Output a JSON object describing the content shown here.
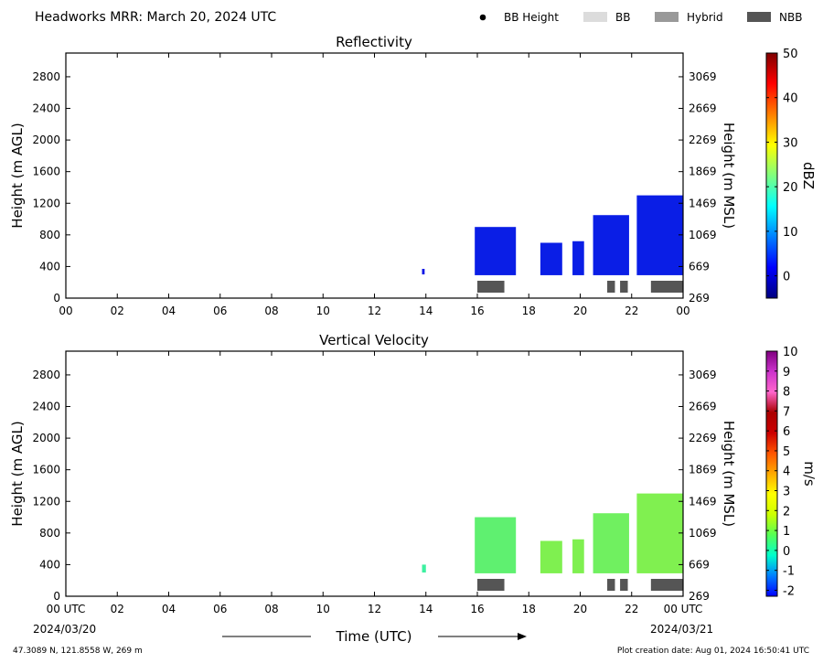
{
  "header": {
    "title": "Headworks MRR:  March 20, 2024 UTC",
    "legend": [
      {
        "label": "BB Height",
        "kind": "dot",
        "color": "#000000"
      },
      {
        "label": "BB",
        "kind": "swatch",
        "color": "#dcdcdc"
      },
      {
        "label": "Hybrid",
        "kind": "swatch",
        "color": "#999999"
      },
      {
        "label": "NBB",
        "kind": "swatch",
        "color": "#555555"
      }
    ]
  },
  "footer": {
    "location": "47.3089 N, 121.8558 W, 269 m",
    "creation": "Plot creation date: Aug 01, 2024 16:50:41 UTC",
    "xlabel": "Time (UTC)",
    "start_date": "2024/03/20",
    "end_date": "2024/03/21"
  },
  "chart_data": [
    {
      "type": "heatmap",
      "title": "Reflectivity",
      "ylabel": "Height (m AGL)",
      "y2label": "Height (m MSL)",
      "xlim": [
        0,
        24
      ],
      "ylim": [
        0,
        3100
      ],
      "x_ticks": [
        "00",
        "02",
        "04",
        "06",
        "08",
        "10",
        "12",
        "14",
        "16",
        "18",
        "20",
        "22",
        "00"
      ],
      "y_ticks": [
        0,
        400,
        800,
        1200,
        1600,
        2000,
        2400,
        2800
      ],
      "y2_ticks": [
        269,
        669,
        1069,
        1469,
        1869,
        2269,
        2669,
        3069
      ],
      "colorbar": {
        "label": "dBZ",
        "range": [
          -5,
          50
        ],
        "ticks": [
          0,
          10,
          20,
          30,
          40,
          50
        ],
        "colors": [
          "#00007f",
          "#0000ff",
          "#007fff",
          "#00ffff",
          "#7fff7f",
          "#ffff00",
          "#ff7f00",
          "#ff0000",
          "#7f0000"
        ]
      },
      "echo_segments": [
        {
          "start": 13.85,
          "end": 13.95,
          "top": 370,
          "bottom": 300,
          "color": "#0a14e6"
        },
        {
          "start": 15.9,
          "end": 17.5,
          "top": 900,
          "bottom": 290,
          "color": "#0a1ee6"
        },
        {
          "start": 18.45,
          "end": 19.3,
          "top": 700,
          "bottom": 290,
          "color": "#0a1ee6"
        },
        {
          "start": 19.7,
          "end": 20.15,
          "top": 720,
          "bottom": 290,
          "color": "#0a1ee6"
        },
        {
          "start": 20.5,
          "end": 21.9,
          "top": 1050,
          "bottom": 290,
          "color": "#0a1ee6"
        },
        {
          "start": 22.2,
          "end": 24.0,
          "top": 1300,
          "bottom": 290,
          "color": "#0a1ee6"
        }
      ],
      "nbb_segments": [
        {
          "start": 16.0,
          "end": 17.05
        },
        {
          "start": 21.05,
          "end": 21.35
        },
        {
          "start": 21.55,
          "end": 21.85
        },
        {
          "start": 22.75,
          "end": 24.0
        }
      ]
    },
    {
      "type": "heatmap",
      "title": "Vertical Velocity",
      "ylabel": "Height (m AGL)",
      "y2label": "Height (m MSL)",
      "xlim": [
        0,
        24
      ],
      "ylim": [
        0,
        3100
      ],
      "x_ticks": [
        "00 UTC",
        "02",
        "04",
        "06",
        "08",
        "10",
        "12",
        "14",
        "16",
        "18",
        "20",
        "22",
        "00 UTC"
      ],
      "y_ticks": [
        0,
        400,
        800,
        1200,
        1600,
        2000,
        2400,
        2800
      ],
      "y2_ticks": [
        269,
        669,
        1069,
        1469,
        1869,
        2269,
        2669,
        3069
      ],
      "colorbar": {
        "label": "m/s",
        "range": [
          -2.3,
          10
        ],
        "ticks": [
          -2,
          -1,
          0,
          1,
          2,
          3,
          4,
          5,
          6,
          7,
          8,
          9,
          10
        ],
        "colors": [
          "#0000ff",
          "#007fff",
          "#00ffcc",
          "#55ff55",
          "#ccff00",
          "#ffff00",
          "#ffaa00",
          "#ff5500",
          "#cc0000",
          "#aa0000",
          "#ff66cc",
          "#cc33cc",
          "#800080"
        ]
      },
      "echo_segments": [
        {
          "start": 13.85,
          "end": 14.0,
          "top": 400,
          "bottom": 300,
          "color": "#3df0a0"
        },
        {
          "start": 15.9,
          "end": 17.5,
          "top": 1000,
          "bottom": 290,
          "color": "#5ff070"
        },
        {
          "start": 18.45,
          "end": 19.3,
          "top": 700,
          "bottom": 290,
          "color": "#7ff050"
        },
        {
          "start": 19.7,
          "end": 20.15,
          "top": 720,
          "bottom": 290,
          "color": "#7ff050"
        },
        {
          "start": 20.5,
          "end": 21.9,
          "top": 1050,
          "bottom": 290,
          "color": "#70f060"
        },
        {
          "start": 22.2,
          "end": 24.0,
          "top": 1300,
          "bottom": 290,
          "color": "#80f050"
        }
      ],
      "nbb_segments": [
        {
          "start": 16.0,
          "end": 17.05
        },
        {
          "start": 21.05,
          "end": 21.35
        },
        {
          "start": 21.55,
          "end": 21.85
        },
        {
          "start": 22.75,
          "end": 24.0
        }
      ]
    }
  ]
}
